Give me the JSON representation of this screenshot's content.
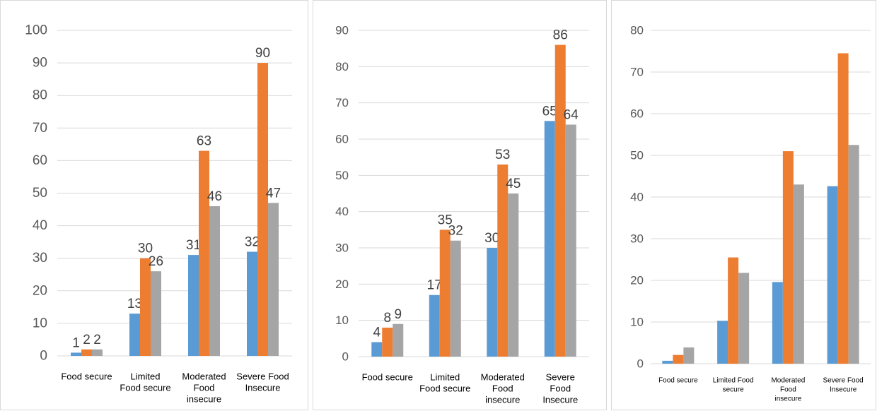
{
  "colors": {
    "series1": "#5b9bd5",
    "series2": "#ed7d31",
    "series3": "#a5a5a5"
  },
  "chart_data": [
    {
      "type": "bar",
      "categories": [
        [
          "Food secure"
        ],
        [
          "Limited",
          "Food secure"
        ],
        [
          "Moderated",
          "Food",
          "insecure"
        ],
        [
          "Severe Food",
          "Insecure"
        ]
      ],
      "series": [
        {
          "values": [
            1,
            13,
            31,
            32
          ],
          "labels": [
            "1",
            "13",
            "31",
            "32"
          ]
        },
        {
          "values": [
            2,
            30,
            63,
            90
          ],
          "labels": [
            "2",
            "30",
            "63",
            "90"
          ]
        },
        {
          "values": [
            2,
            26,
            46,
            47
          ],
          "labels": [
            "2",
            "26",
            "46",
            "47"
          ]
        }
      ],
      "ylim": [
        0,
        100
      ],
      "yticks": [
        0,
        10,
        20,
        30,
        40,
        50,
        60,
        70,
        80,
        90,
        100
      ],
      "grid": true,
      "data_labels": true
    },
    {
      "type": "bar",
      "categories": [
        [
          "Food secure"
        ],
        [
          "Limited",
          "Food secure"
        ],
        [
          "Moderated",
          "Food",
          "insecure"
        ],
        [
          "Severe",
          "Food",
          "Insecure"
        ]
      ],
      "series": [
        {
          "values": [
            4,
            17,
            30,
            65
          ],
          "labels": [
            "4",
            "17",
            "30",
            "65"
          ]
        },
        {
          "values": [
            8,
            35,
            53,
            86
          ],
          "labels": [
            "8",
            "35",
            "53",
            "86"
          ]
        },
        {
          "values": [
            9,
            32,
            45,
            64
          ],
          "labels": [
            "9",
            "32",
            "45",
            "64"
          ]
        }
      ],
      "ylim": [
        0,
        90
      ],
      "yticks": [
        0,
        10,
        20,
        30,
        40,
        50,
        60,
        70,
        80,
        90
      ],
      "grid": true,
      "data_labels": true
    },
    {
      "type": "bar",
      "categories": [
        [
          "Food secure"
        ],
        [
          "Limited Food",
          "secure"
        ],
        [
          "Moderated",
          "Food",
          "insecure"
        ],
        [
          "Severe Food",
          "Insecure"
        ]
      ],
      "series": [
        {
          "values": [
            0.7,
            10.3,
            19.6,
            42.6
          ]
        },
        {
          "values": [
            2.1,
            25.5,
            51.0,
            74.5
          ]
        },
        {
          "values": [
            3.9,
            21.8,
            43.0,
            52.5
          ]
        }
      ],
      "ylim": [
        0,
        80
      ],
      "yticks": [
        0,
        10,
        20,
        30,
        40,
        50,
        60,
        70,
        80
      ],
      "grid": true,
      "data_labels": false
    }
  ]
}
